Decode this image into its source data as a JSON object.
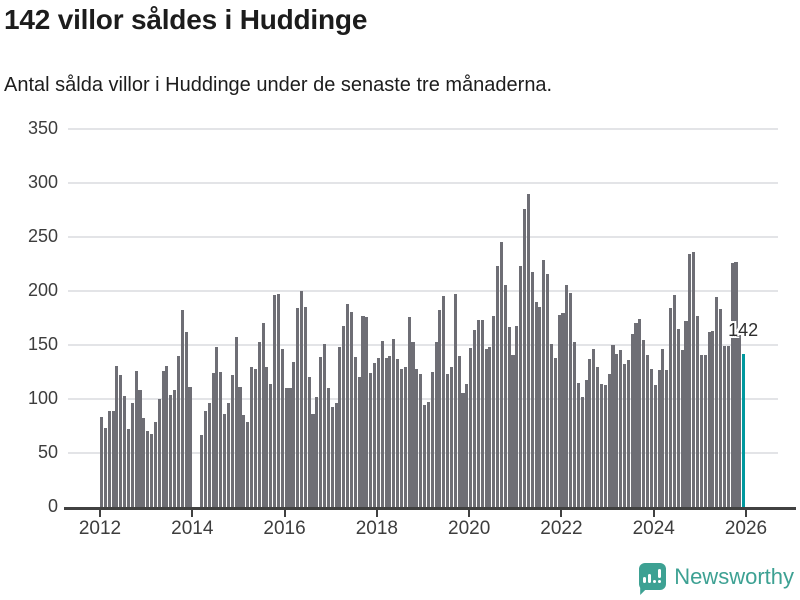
{
  "title": "142 villor såldes i Huddinge",
  "subtitle": "Antal sålda villor i Huddinge under de senaste tre månaderna.",
  "logo": {
    "text": "Newsworthy"
  },
  "colors": {
    "bar": "#6e6e75",
    "highlight": "#00989e",
    "grid": "#e3e4e7",
    "axis": "#414141",
    "axis_text": "#3d3d3d",
    "title_text": "#1c1c1c",
    "logo_teal": "#3da193"
  },
  "chart_data": {
    "type": "bar",
    "title": "142 villor såldes i Huddinge",
    "subtitle": "Antal sålda villor i Huddinge under de senaste tre månaderna.",
    "frequency": "monthly",
    "x_start": "2012-01",
    "x_end": "2025-12",
    "xticks": [
      2012,
      2014,
      2016,
      2018,
      2020,
      2022,
      2024,
      2026
    ],
    "yticks": [
      0,
      50,
      100,
      150,
      200,
      250,
      300,
      350
    ],
    "ylim": [
      0,
      350
    ],
    "grid": true,
    "bar_color": "#6e6e75",
    "highlight_last": true,
    "highlight_color": "#00989e",
    "last_value_label": "142",
    "values": [
      83,
      73,
      89,
      89,
      131,
      122,
      103,
      72,
      96,
      126,
      108,
      82,
      70,
      68,
      79,
      100,
      126,
      131,
      104,
      108,
      140,
      182,
      162,
      111,
      0,
      0,
      67,
      89,
      96,
      124,
      148,
      125,
      86,
      96,
      122,
      157,
      111,
      85,
      79,
      130,
      128,
      153,
      170,
      130,
      114,
      196,
      197,
      146,
      110,
      110,
      134,
      184,
      200,
      185,
      120,
      86,
      102,
      139,
      151,
      110,
      93,
      96,
      148,
      168,
      188,
      181,
      139,
      120,
      177,
      176,
      124,
      133,
      138,
      154,
      138,
      140,
      156,
      137,
      128,
      130,
      176,
      153,
      128,
      123,
      94,
      97,
      125,
      153,
      182,
      195,
      123,
      130,
      197,
      140,
      106,
      114,
      147,
      164,
      173,
      173,
      146,
      148,
      177,
      223,
      245,
      206,
      167,
      141,
      168,
      223,
      276,
      290,
      218,
      190,
      185,
      229,
      216,
      151,
      138,
      178,
      180,
      206,
      198,
      153,
      115,
      102,
      118,
      137,
      146,
      130,
      114,
      113,
      123,
      150,
      142,
      145,
      132,
      136,
      160,
      170,
      174,
      155,
      141,
      128,
      113,
      127,
      146,
      127,
      184,
      196,
      165,
      145,
      172,
      234,
      236,
      177,
      141,
      141,
      162,
      163,
      194,
      183,
      149,
      149,
      226,
      227,
      160,
      142
    ]
  }
}
